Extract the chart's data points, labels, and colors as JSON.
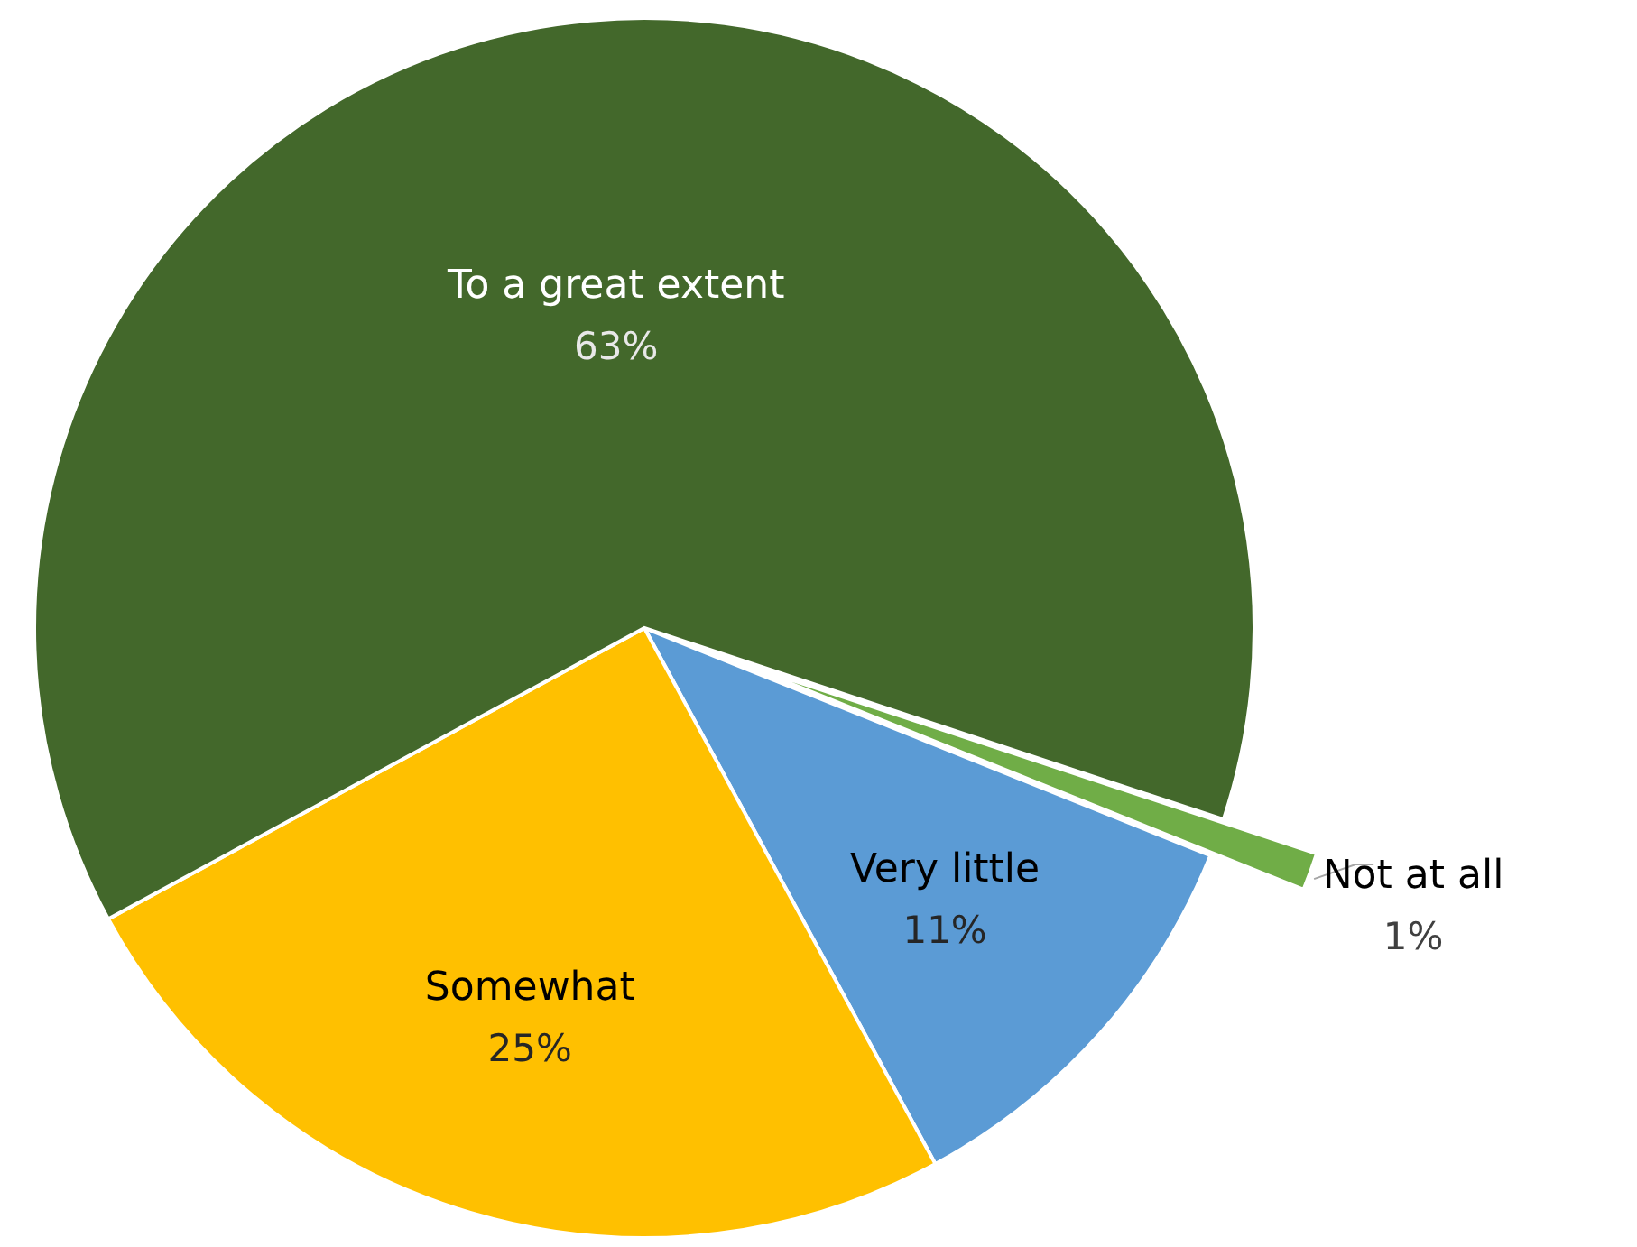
{
  "chart_data": {
    "type": "pie",
    "categories": [
      "Not at all",
      "Very little",
      "Somewhat",
      "To a great extent"
    ],
    "values": [
      1,
      11,
      25,
      63
    ],
    "colors": [
      "#70ad47",
      "#5b9bd5",
      "#ffc000",
      "#43682b"
    ],
    "value_labels": [
      "1%",
      "11%",
      "25%",
      "63%"
    ]
  }
}
